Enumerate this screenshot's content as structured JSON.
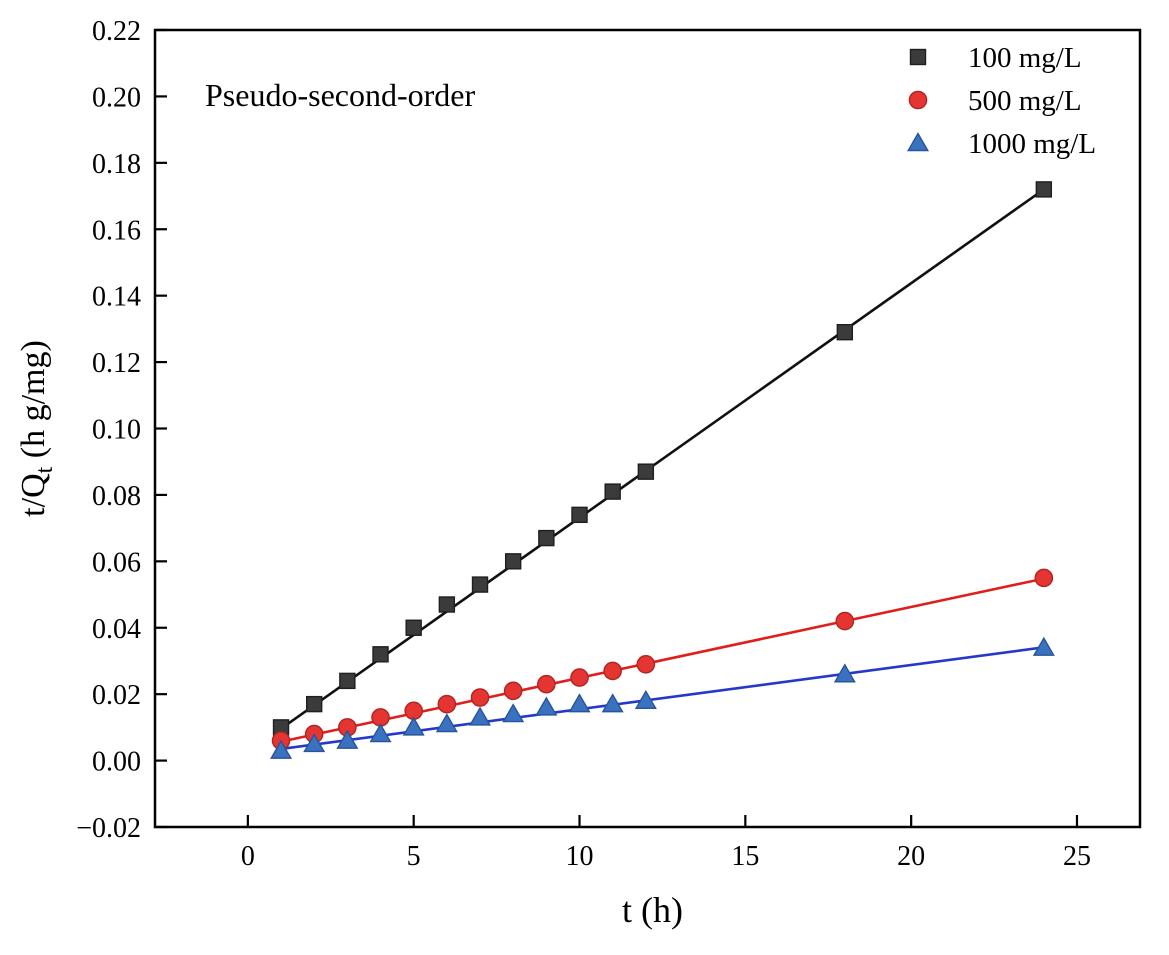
{
  "chart_data": {
    "type": "scatter",
    "title": "",
    "annotation": "Pseudo-second-order",
    "xlabel": "t (h)",
    "ylabel_parts": {
      "pre": "t/Q",
      "sub": "t",
      "post": " (h g/mg)"
    },
    "xlim": [
      -2.8,
      26.9
    ],
    "ylim": [
      -0.02,
      0.22
    ],
    "xticks": [
      0,
      5,
      10,
      15,
      20,
      25
    ],
    "xtick_labels": [
      "0",
      "5",
      "10",
      "15",
      "20",
      "25"
    ],
    "yticks": [
      -0.02,
      0.0,
      0.02,
      0.04,
      0.06,
      0.08,
      0.1,
      0.12,
      0.14,
      0.16,
      0.18,
      0.2,
      0.22
    ],
    "ytick_labels": [
      "−0.02",
      "0.00",
      "0.02",
      "0.04",
      "0.06",
      "0.08",
      "0.10",
      "0.12",
      "0.14",
      "0.16",
      "0.18",
      "0.20",
      "0.22"
    ],
    "grid": false,
    "legend_position": "top-right",
    "x": [
      1,
      2,
      3,
      4,
      5,
      6,
      7,
      8,
      9,
      10,
      11,
      12,
      18,
      24
    ],
    "series": [
      {
        "name": "100 mg/L",
        "marker": "square",
        "marker_color": "#3b3b3b",
        "marker_edge": "#1f1f1f",
        "line_color": "#111111",
        "values": [
          0.01,
          0.017,
          0.024,
          0.032,
          0.04,
          0.047,
          0.053,
          0.06,
          0.067,
          0.074,
          0.081,
          0.087,
          0.129,
          0.172
        ],
        "fit": {
          "x1": 1,
          "y1": 0.0096,
          "x2": 24,
          "y2": 0.172
        }
      },
      {
        "name": "500 mg/L",
        "marker": "circle",
        "marker_color": "#e43532",
        "marker_edge": "#b02422",
        "line_color": "#e01f1c",
        "values": [
          0.006,
          0.008,
          0.01,
          0.013,
          0.015,
          0.017,
          0.019,
          0.021,
          0.023,
          0.025,
          0.027,
          0.029,
          0.042,
          0.055
        ],
        "fit": {
          "x1": 1,
          "y1": 0.0057,
          "x2": 24,
          "y2": 0.0548
        }
      },
      {
        "name": "1000 mg/L",
        "marker": "triangle",
        "marker_color": "#3a72c0",
        "marker_edge": "#27549a",
        "line_color": "#2438cc",
        "values": [
          0.003,
          0.005,
          0.006,
          0.008,
          0.01,
          0.011,
          0.013,
          0.014,
          0.016,
          0.017,
          0.017,
          0.018,
          0.026,
          0.034
        ],
        "fit": {
          "x1": 1,
          "y1": 0.0035,
          "x2": 24,
          "y2": 0.0341
        }
      }
    ]
  }
}
